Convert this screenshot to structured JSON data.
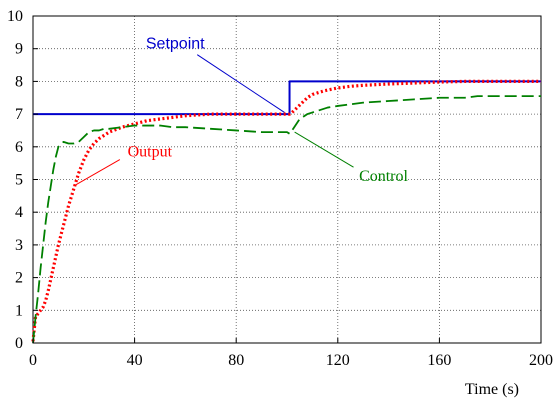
{
  "chart_data": {
    "type": "line",
    "title": "",
    "xlabel": "Time (s)",
    "ylabel": "",
    "xlim": [
      0,
      200
    ],
    "ylim": [
      0,
      10
    ],
    "xticks": [
      0,
      40,
      80,
      120,
      160,
      200
    ],
    "yticks": [
      0,
      1,
      2,
      3,
      4,
      5,
      6,
      7,
      8,
      9,
      10
    ],
    "grid": true,
    "legend": "none",
    "series": [
      {
        "name": "Setpoint",
        "color": "#0000cc",
        "style": "solid",
        "x": [
          0,
          101,
          101,
          200
        ],
        "y": [
          7,
          7,
          8,
          8
        ]
      },
      {
        "name": "Output",
        "color": "#ff0000",
        "style": "dotted",
        "x": [
          0,
          1,
          2,
          3,
          4,
          5,
          6,
          8,
          10,
          12,
          14,
          16,
          18,
          20,
          22,
          24,
          26,
          28,
          30,
          35,
          40,
          45,
          50,
          55,
          60,
          70,
          80,
          90,
          100,
          101,
          102,
          104,
          106,
          108,
          110,
          112,
          115,
          120,
          125,
          130,
          140,
          150,
          160,
          170,
          180,
          190,
          200
        ],
        "y": [
          0.05,
          0.8,
          0.9,
          1.0,
          1.1,
          1.3,
          1.6,
          2.3,
          3.0,
          3.6,
          4.2,
          4.7,
          5.2,
          5.6,
          5.9,
          6.1,
          6.25,
          6.35,
          6.45,
          6.6,
          6.7,
          6.8,
          6.85,
          6.9,
          6.95,
          7.0,
          7.0,
          7.0,
          7.0,
          7.0,
          7.05,
          7.2,
          7.35,
          7.5,
          7.6,
          7.65,
          7.72,
          7.8,
          7.85,
          7.88,
          7.92,
          7.95,
          7.98,
          8.0,
          8.0,
          8.0,
          8.0
        ]
      },
      {
        "name": "Control",
        "color": "#008000",
        "style": "dashed",
        "x": [
          0,
          1,
          2,
          3,
          4,
          5,
          6,
          7,
          8,
          9,
          10,
          12,
          14,
          16,
          18,
          20,
          22,
          24,
          26,
          28,
          30,
          35,
          40,
          45,
          50,
          55,
          60,
          70,
          80,
          90,
          100,
          101,
          102,
          105,
          108,
          112,
          116,
          120,
          130,
          140,
          150,
          160,
          170,
          175,
          180,
          190,
          200
        ],
        "y": [
          0,
          0.8,
          1.5,
          2.3,
          3.0,
          3.7,
          4.3,
          4.8,
          5.3,
          5.7,
          6.0,
          6.15,
          6.1,
          6.1,
          6.15,
          6.3,
          6.45,
          6.5,
          6.5,
          6.55,
          6.55,
          6.6,
          6.65,
          6.65,
          6.65,
          6.6,
          6.6,
          6.55,
          6.5,
          6.45,
          6.45,
          6.4,
          6.5,
          6.85,
          7.0,
          7.1,
          7.2,
          7.25,
          7.35,
          7.4,
          7.45,
          7.5,
          7.5,
          7.55,
          7.55,
          7.55,
          7.55
        ]
      }
    ],
    "annotations": [
      {
        "text": "Setpoint",
        "color": "#0000cc",
        "text_x": 56,
        "text_y": 9.0,
        "point_x": 99,
        "point_y": 7.05
      },
      {
        "text": "Output",
        "color": "#ff0000",
        "text_x": 46,
        "text_y": 5.7,
        "point_x": 16,
        "point_y": 4.8
      },
      {
        "text": "Control",
        "color": "#008000",
        "text_x": 138,
        "text_y": 4.95,
        "point_x": 103,
        "point_y": 6.45
      }
    ]
  }
}
